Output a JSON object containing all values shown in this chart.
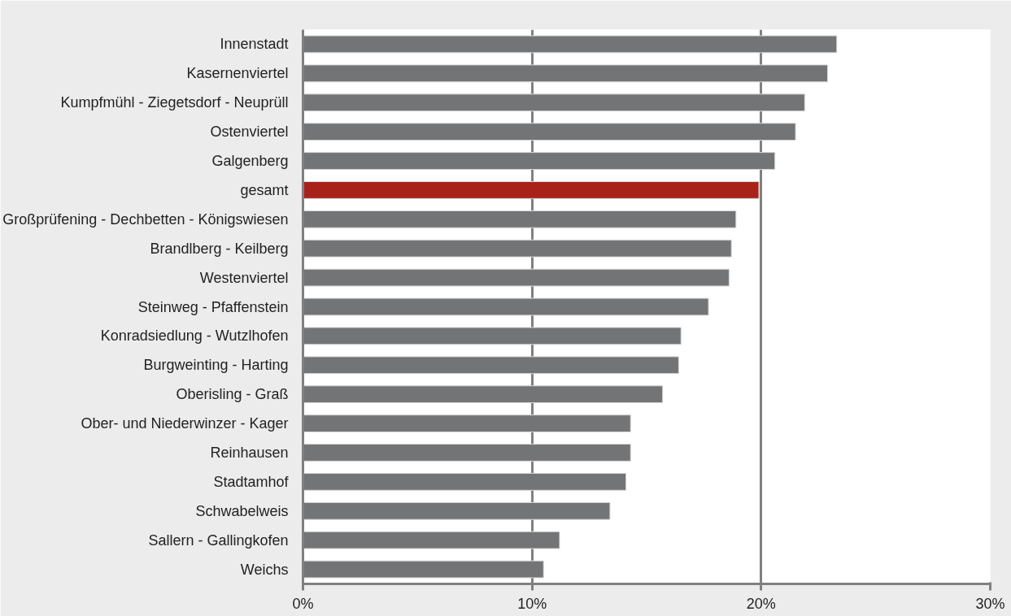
{
  "chart_data": {
    "type": "bar",
    "orientation": "horizontal",
    "categories": [
      "Innenstadt",
      "Kasernenviertel",
      "Kumpfmühl - Ziegetsdorf - Neuprüll",
      "Ostenviertel",
      "Galgenberg",
      "gesamt",
      "Großprüfening - Dechbetten - Königswiesen",
      "Brandlberg - Keilberg",
      "Westenviertel",
      "Steinweg - Pfaffenstein",
      "Konradsiedlung - Wutzlhofen",
      "Burgweinting - Harting",
      "Oberisling - Graß",
      "Ober- und Niederwinzer - Kager",
      "Reinhausen",
      "Stadtamhof",
      "Schwabelweis",
      "Sallern - Gallingkofen",
      "Weichs"
    ],
    "values": [
      23.3,
      22.9,
      21.9,
      21.5,
      20.6,
      19.9,
      18.9,
      18.7,
      18.6,
      17.7,
      16.5,
      16.4,
      15.7,
      14.3,
      14.3,
      14.1,
      13.4,
      11.2,
      10.5
    ],
    "colors": [
      "#737475",
      "#737475",
      "#737475",
      "#737475",
      "#737475",
      "#a8221a",
      "#737475",
      "#737475",
      "#737475",
      "#737475",
      "#737475",
      "#737475",
      "#737475",
      "#737475",
      "#737475",
      "#737475",
      "#737475",
      "#737475",
      "#737475"
    ],
    "xlim": [
      0,
      30
    ],
    "xticks": [
      {
        "value": 0,
        "label": "0%"
      },
      {
        "value": 10,
        "label": "10%"
      },
      {
        "value": 20,
        "label": "20%"
      },
      {
        "value": 30,
        "label": "30%"
      }
    ],
    "grid": "x"
  }
}
